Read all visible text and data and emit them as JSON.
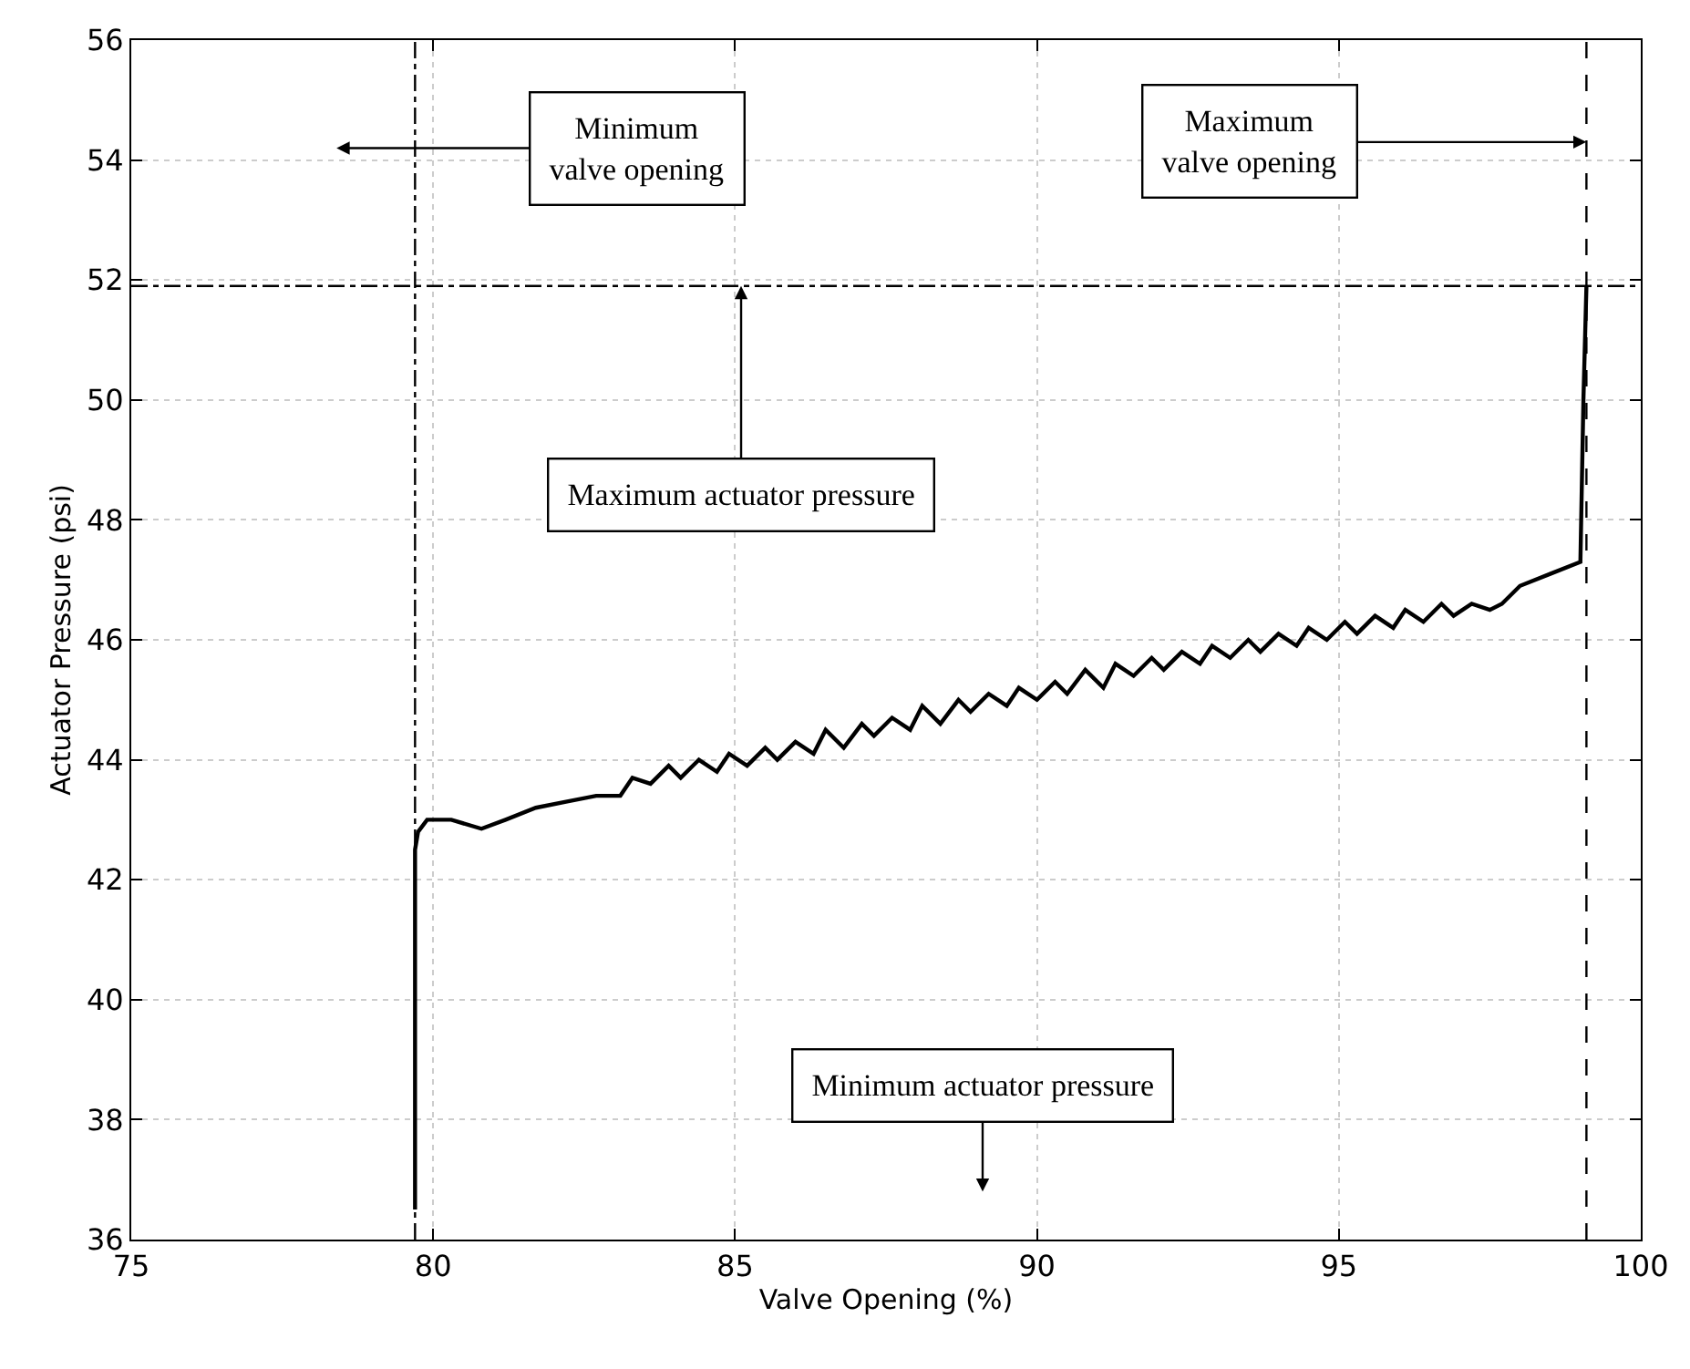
{
  "chart_data": {
    "type": "line",
    "xlabel": "Valve Opening (%)",
    "ylabel": "Actuator Pressure (psi)",
    "xlim": [
      75,
      100
    ],
    "xticks": [
      75,
      80,
      85,
      90,
      95,
      100
    ],
    "ylim": [
      36,
      56
    ],
    "yticks": [
      36,
      38,
      40,
      42,
      44,
      46,
      48,
      50,
      52,
      54,
      56
    ],
    "grid": true,
    "line_style": "solid",
    "x": [
      79.7,
      79.7,
      79.75,
      79.9,
      80.3,
      80.8,
      81.2,
      81.7,
      82.2,
      82.7,
      83.1,
      83.3,
      83.6,
      83.9,
      84.1,
      84.4,
      84.7,
      84.9,
      85.2,
      85.5,
      85.7,
      86.0,
      86.3,
      86.5,
      86.8,
      87.1,
      87.3,
      87.6,
      87.9,
      88.1,
      88.4,
      88.7,
      88.9,
      89.2,
      89.5,
      89.7,
      90.0,
      90.3,
      90.5,
      90.8,
      91.1,
      91.3,
      91.6,
      91.9,
      92.1,
      92.4,
      92.7,
      92.9,
      93.2,
      93.5,
      93.7,
      94.0,
      94.3,
      94.5,
      94.8,
      95.1,
      95.3,
      95.6,
      95.9,
      96.1,
      96.4,
      96.7,
      96.9,
      97.2,
      97.5,
      97.7,
      98.0,
      98.5,
      99.0,
      99.05,
      99.1
    ],
    "series": [
      {
        "color": "#000000",
        "values": [
          36.5,
          42.5,
          42.8,
          43.0,
          43.0,
          42.85,
          43.0,
          43.2,
          43.3,
          43.4,
          43.4,
          43.7,
          43.6,
          43.9,
          43.7,
          44.0,
          43.8,
          44.1,
          43.9,
          44.2,
          44.0,
          44.3,
          44.1,
          44.5,
          44.2,
          44.6,
          44.4,
          44.7,
          44.5,
          44.9,
          44.6,
          45.0,
          44.8,
          45.1,
          44.9,
          45.2,
          45.0,
          45.3,
          45.1,
          45.5,
          45.2,
          45.6,
          45.4,
          45.7,
          45.5,
          45.8,
          45.6,
          45.9,
          45.7,
          46.0,
          45.8,
          46.1,
          45.9,
          46.2,
          46.0,
          46.3,
          46.1,
          46.4,
          46.2,
          46.5,
          46.3,
          46.6,
          46.4,
          46.6,
          46.5,
          46.6,
          46.9,
          47.1,
          47.3,
          50.0,
          51.9
        ]
      }
    ],
    "ref_lines": [
      {
        "axis": "x",
        "value": 79.7,
        "color": "#000000",
        "line_style": "dashdot"
      },
      {
        "axis": "x",
        "value": 99.1,
        "color": "#000000",
        "line_style": "dashed"
      },
      {
        "axis": "y",
        "value": 51.9,
        "color": "#000000",
        "line_style": "dashdot"
      }
    ],
    "annotations": [
      "Minimum\nvalve opening",
      {
        "text": "Maximum\nvalve opening",
        "x": 99.1,
        "y": 54.3
      },
      {
        "text": "Maximum actuator pressure",
        "x": 85.1,
        "y": 51.9
      },
      "Minimum actuator pressure"
    ]
  }
}
